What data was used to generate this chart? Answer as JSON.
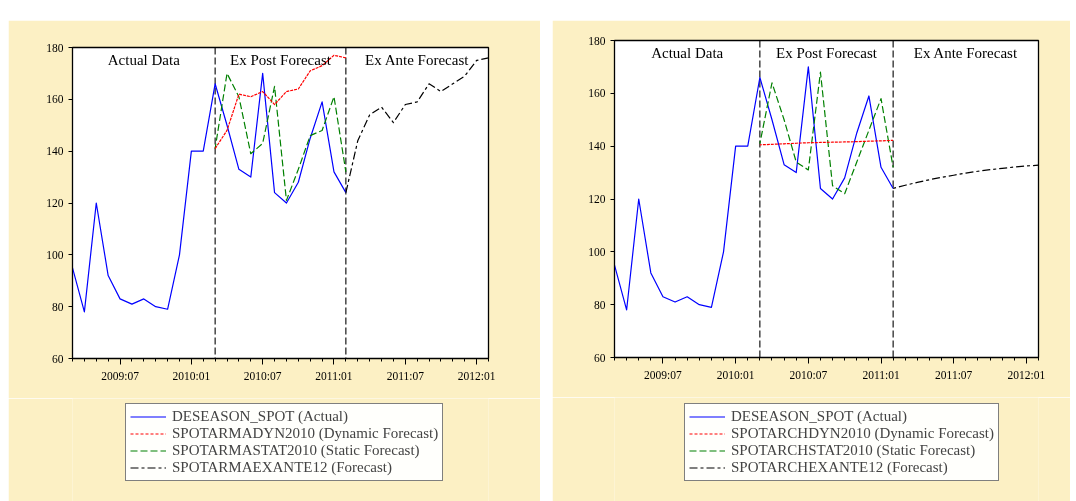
{
  "chart_data": [
    {
      "type": "line",
      "x": [
        "2009-03",
        "2009-04",
        "2009-05",
        "2009-06",
        "2009-07",
        "2009-08",
        "2009-09",
        "2009-10",
        "2009-11",
        "2009-12",
        "2010-01",
        "2010-02",
        "2010-03",
        "2010-04",
        "2010-05",
        "2010-06",
        "2010-07",
        "2010-08",
        "2010-09",
        "2010-10",
        "2010-11",
        "2010-12",
        "2011-01",
        "2011-02"
      ],
      "xlim": [
        "2009-03",
        "2012-02"
      ],
      "ylim": [
        60,
        180
      ],
      "yticks": [
        60,
        80,
        100,
        120,
        140,
        160,
        180
      ],
      "xticks": [
        {
          "value": "2009-03",
          "label": null
        },
        {
          "value": "2009-04",
          "label": null
        },
        {
          "value": "2009-05",
          "label": null
        },
        {
          "value": "2009-06",
          "label": null
        },
        {
          "value": "2009-07",
          "label": "2009:07"
        },
        {
          "value": "2009-08",
          "label": null
        },
        {
          "value": "2009-09",
          "label": null
        },
        {
          "value": "2009-10",
          "label": null
        },
        {
          "value": "2009-11",
          "label": null
        },
        {
          "value": "2009-12",
          "label": null
        },
        {
          "value": "2010-01",
          "label": "2010:01"
        },
        {
          "value": "2010-02",
          "label": null
        },
        {
          "value": "2010-03",
          "label": null
        },
        {
          "value": "2010-04",
          "label": null
        },
        {
          "value": "2010-05",
          "label": null
        },
        {
          "value": "2010-06",
          "label": null
        },
        {
          "value": "2010-07",
          "label": "2010:07"
        },
        {
          "value": "2010-08",
          "label": null
        },
        {
          "value": "2010-09",
          "label": null
        },
        {
          "value": "2010-10",
          "label": null
        },
        {
          "value": "2010-11",
          "label": null
        },
        {
          "value": "2010-12",
          "label": null
        },
        {
          "value": "2011-01",
          "label": "2011:01"
        },
        {
          "value": "2011-02",
          "label": null
        },
        {
          "value": "2011-03",
          "label": null
        },
        {
          "value": "2011-04",
          "label": null
        },
        {
          "value": "2011-05",
          "label": null
        },
        {
          "value": "2011-06",
          "label": null
        },
        {
          "value": "2011-07",
          "label": "2011:07"
        },
        {
          "value": "2011-08",
          "label": null
        },
        {
          "value": "2011-09",
          "label": null
        },
        {
          "value": "2011-10",
          "label": null
        },
        {
          "value": "2011-11",
          "label": null
        },
        {
          "value": "2011-12",
          "label": null
        },
        {
          "value": "2012-01",
          "label": "2012:01"
        },
        {
          "value": "2012-02",
          "label": null
        }
      ],
      "series": [
        {
          "name": "DESEASON_SPOT (Actual)",
          "color": "#0000ff",
          "line_style": "solid",
          "values": [
            95,
            78,
            120,
            92,
            83,
            81,
            83,
            80,
            79,
            100,
            140,
            140,
            166,
            150,
            133,
            130,
            170,
            124,
            120,
            128,
            145,
            159,
            132,
            124
          ]
        },
        {
          "name": "SPOTARMADYN2010 (Dynamic Forecast)",
          "color": "#ff0000",
          "line_style": "dotted",
          "x": [
            "2010-03",
            "2010-04",
            "2010-05",
            "2010-06",
            "2010-07",
            "2010-08",
            "2010-09",
            "2010-10",
            "2010-11",
            "2010-12",
            "2011-01",
            "2011-02"
          ],
          "values": [
            141,
            148,
            162,
            161,
            163,
            158,
            163,
            164,
            171,
            173,
            177,
            176
          ]
        },
        {
          "name": "SPOTARMASTAT2010 (Static Forecast)",
          "color": "#008000",
          "line_style": "dashed",
          "x": [
            "2010-03",
            "2010-04",
            "2010-05",
            "2010-06",
            "2010-07",
            "2010-08",
            "2010-09",
            "2010-10",
            "2010-11",
            "2010-12",
            "2011-01",
            "2011-02"
          ],
          "values": [
            141,
            170,
            161,
            139,
            143,
            165,
            121,
            133,
            146,
            148,
            161,
            132
          ]
        },
        {
          "name": "SPOTARMAEXANTE12 (Forecast)",
          "color": "#000000",
          "line_style": "dashdot",
          "x": [
            "2011-02",
            "2011-03",
            "2011-04",
            "2011-05",
            "2011-06",
            "2011-07",
            "2011-08",
            "2011-09",
            "2011-10",
            "2011-11",
            "2011-12",
            "2012-01",
            "2012-02"
          ],
          "values": [
            124,
            144,
            154,
            157,
            151,
            158,
            159,
            166,
            163,
            166,
            169,
            175,
            176
          ]
        }
      ],
      "ref_lines": [
        {
          "axis": "x",
          "value": "2010-03",
          "color": "#000000",
          "line_style": "dashed"
        },
        {
          "axis": "x",
          "value": "2011-02",
          "color": "#000000",
          "line_style": "dashed"
        }
      ],
      "annotations": [
        "Actual Data",
        "Ex Post Forecast",
        "Ex Ante Forecast"
      ],
      "legend": "bottom",
      "grid": false
    },
    {
      "type": "line",
      "x": [
        "2009-03",
        "2009-04",
        "2009-05",
        "2009-06",
        "2009-07",
        "2009-08",
        "2009-09",
        "2009-10",
        "2009-11",
        "2009-12",
        "2010-01",
        "2010-02",
        "2010-03",
        "2010-04",
        "2010-05",
        "2010-06",
        "2010-07",
        "2010-08",
        "2010-09",
        "2010-10",
        "2010-11",
        "2010-12",
        "2011-01",
        "2011-02"
      ],
      "xlim": [
        "2009-03",
        "2012-02"
      ],
      "ylim": [
        60,
        180
      ],
      "yticks": [
        60,
        80,
        100,
        120,
        140,
        160,
        180
      ],
      "xticks": [
        {
          "value": "2009-03",
          "label": null
        },
        {
          "value": "2009-04",
          "label": null
        },
        {
          "value": "2009-05",
          "label": null
        },
        {
          "value": "2009-06",
          "label": null
        },
        {
          "value": "2009-07",
          "label": "2009:07"
        },
        {
          "value": "2009-08",
          "label": null
        },
        {
          "value": "2009-09",
          "label": null
        },
        {
          "value": "2009-10",
          "label": null
        },
        {
          "value": "2009-11",
          "label": null
        },
        {
          "value": "2009-12",
          "label": null
        },
        {
          "value": "2010-01",
          "label": "2010:01"
        },
        {
          "value": "2010-02",
          "label": null
        },
        {
          "value": "2010-03",
          "label": null
        },
        {
          "value": "2010-04",
          "label": null
        },
        {
          "value": "2010-05",
          "label": null
        },
        {
          "value": "2010-06",
          "label": null
        },
        {
          "value": "2010-07",
          "label": "2010:07"
        },
        {
          "value": "2010-08",
          "label": null
        },
        {
          "value": "2010-09",
          "label": null
        },
        {
          "value": "2010-10",
          "label": null
        },
        {
          "value": "2010-11",
          "label": null
        },
        {
          "value": "2010-12",
          "label": null
        },
        {
          "value": "2011-01",
          "label": "2011:01"
        },
        {
          "value": "2011-02",
          "label": null
        },
        {
          "value": "2011-03",
          "label": null
        },
        {
          "value": "2011-04",
          "label": null
        },
        {
          "value": "2011-05",
          "label": null
        },
        {
          "value": "2011-06",
          "label": null
        },
        {
          "value": "2011-07",
          "label": "2011:07"
        },
        {
          "value": "2011-08",
          "label": null
        },
        {
          "value": "2011-09",
          "label": null
        },
        {
          "value": "2011-10",
          "label": null
        },
        {
          "value": "2011-11",
          "label": null
        },
        {
          "value": "2011-12",
          "label": null
        },
        {
          "value": "2012-01",
          "label": "2012:01"
        },
        {
          "value": "2012-02",
          "label": null
        }
      ],
      "series": [
        {
          "name": "DESEASON_SPOT (Actual)",
          "color": "#0000ff",
          "line_style": "solid",
          "values": [
            95,
            78,
            120,
            92,
            83,
            81,
            83,
            80,
            79,
            100,
            140,
            140,
            166,
            150,
            133,
            130,
            170,
            124,
            120,
            128,
            145,
            159,
            132,
            124
          ]
        },
        {
          "name": "SPOTARCHDYN2010 (Dynamic Forecast)",
          "color": "#ff0000",
          "line_style": "dotted",
          "x": [
            "2010-03",
            "2010-04",
            "2010-05",
            "2010-06",
            "2010-07",
            "2010-08",
            "2010-09",
            "2010-10",
            "2010-11",
            "2010-12",
            "2011-01",
            "2011-02"
          ],
          "values": [
            140.5,
            140.7,
            140.9,
            141.1,
            141.3,
            141.4,
            141.5,
            141.6,
            141.7,
            141.9,
            142,
            142.2
          ]
        },
        {
          "name": "SPOTARCHSTAT2010 (Static Forecast)",
          "color": "#008000",
          "line_style": "dashed",
          "x": [
            "2010-03",
            "2010-04",
            "2010-05",
            "2010-06",
            "2010-07",
            "2010-08",
            "2010-09",
            "2010-10",
            "2010-11",
            "2010-12",
            "2011-01",
            "2011-02"
          ],
          "values": [
            141,
            164,
            150,
            134,
            131,
            168,
            125,
            122,
            134,
            146,
            158,
            132
          ]
        },
        {
          "name": "SPOTARCHEXANTE12 (Forecast)",
          "color": "#000000",
          "line_style": "dashdot",
          "x": [
            "2011-02",
            "2011-03",
            "2011-04",
            "2011-05",
            "2011-06",
            "2011-07",
            "2011-08",
            "2011-09",
            "2011-10",
            "2011-11",
            "2011-12",
            "2012-01",
            "2012-02"
          ],
          "values": [
            124,
            125.2,
            126.3,
            127.3,
            128.2,
            129,
            129.8,
            130.5,
            131.1,
            131.6,
            132.1,
            132.5,
            132.8
          ]
        }
      ],
      "ref_lines": [
        {
          "axis": "x",
          "value": "2010-03",
          "color": "#000000",
          "line_style": "dashed"
        },
        {
          "axis": "x",
          "value": "2011-02",
          "color": "#000000",
          "line_style": "dashed"
        }
      ],
      "annotations": [
        "Actual Data",
        "Ex Post Forecast",
        "Ex Ante Forecast"
      ],
      "legend": "bottom",
      "grid": false
    }
  ]
}
